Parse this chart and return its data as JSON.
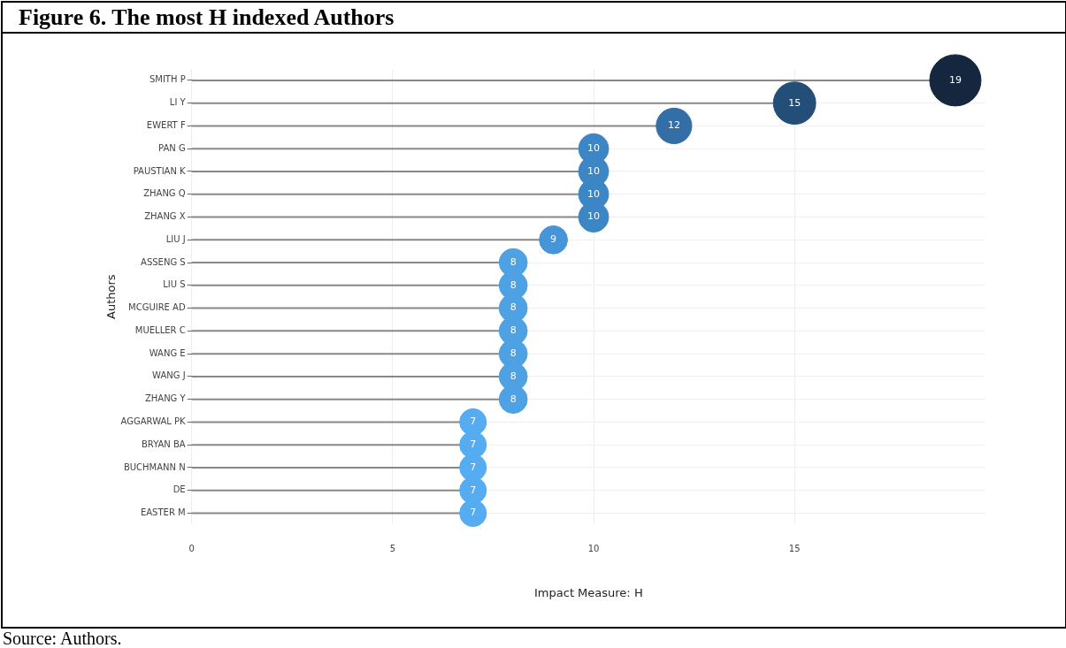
{
  "chart_data": {
    "type": "lollipop",
    "title": "Figure 6. The most H indexed Authors",
    "xlabel": "Impact Measure: H",
    "ylabel": "Authors",
    "categories": [
      "SMITH P",
      "LI Y",
      "EWERT F",
      "PAN G",
      "PAUSTIAN K",
      "ZHANG Q",
      "ZHANG X",
      "LIU J",
      "ASSENG S",
      "LIU S",
      "MCGUIRE AD",
      "MUELLER C",
      "WANG E",
      "WANG J",
      "ZHANG Y",
      "AGGARWAL PK",
      "BRYAN BA",
      "BUCHMANN N",
      "DE",
      "EASTER M"
    ],
    "values": [
      19,
      15,
      12,
      10,
      10,
      10,
      10,
      9,
      8,
      8,
      8,
      8,
      8,
      8,
      8,
      7,
      7,
      7,
      7,
      7
    ],
    "colors": [
      "#14273f",
      "#234e78",
      "#336fa6",
      "#3d86c6",
      "#3d86c6",
      "#3d86c6",
      "#3d86c6",
      "#4595d8",
      "#4ea1e3",
      "#4ea1e3",
      "#4ea1e3",
      "#4ea1e3",
      "#4ea1e3",
      "#4ea1e3",
      "#4ea1e3",
      "#56acf0",
      "#56acf0",
      "#56acf0",
      "#56acf0",
      "#56acf0"
    ],
    "sizes": [
      1,
      0.68,
      0.48,
      0.34,
      0.34,
      0.34,
      0.34,
      0.3,
      0.3,
      0.3,
      0.3,
      0.3,
      0.3,
      0.3,
      0.3,
      0.27,
      0.27,
      0.27,
      0.27,
      0.27
    ],
    "xlim": [
      0,
      19.75
    ],
    "xticks": [
      0,
      5,
      10,
      15
    ],
    "grid": true,
    "legend": false,
    "data_labels": true,
    "orientation": "horizontal",
    "annotations": [
      "Source: Authors."
    ]
  }
}
